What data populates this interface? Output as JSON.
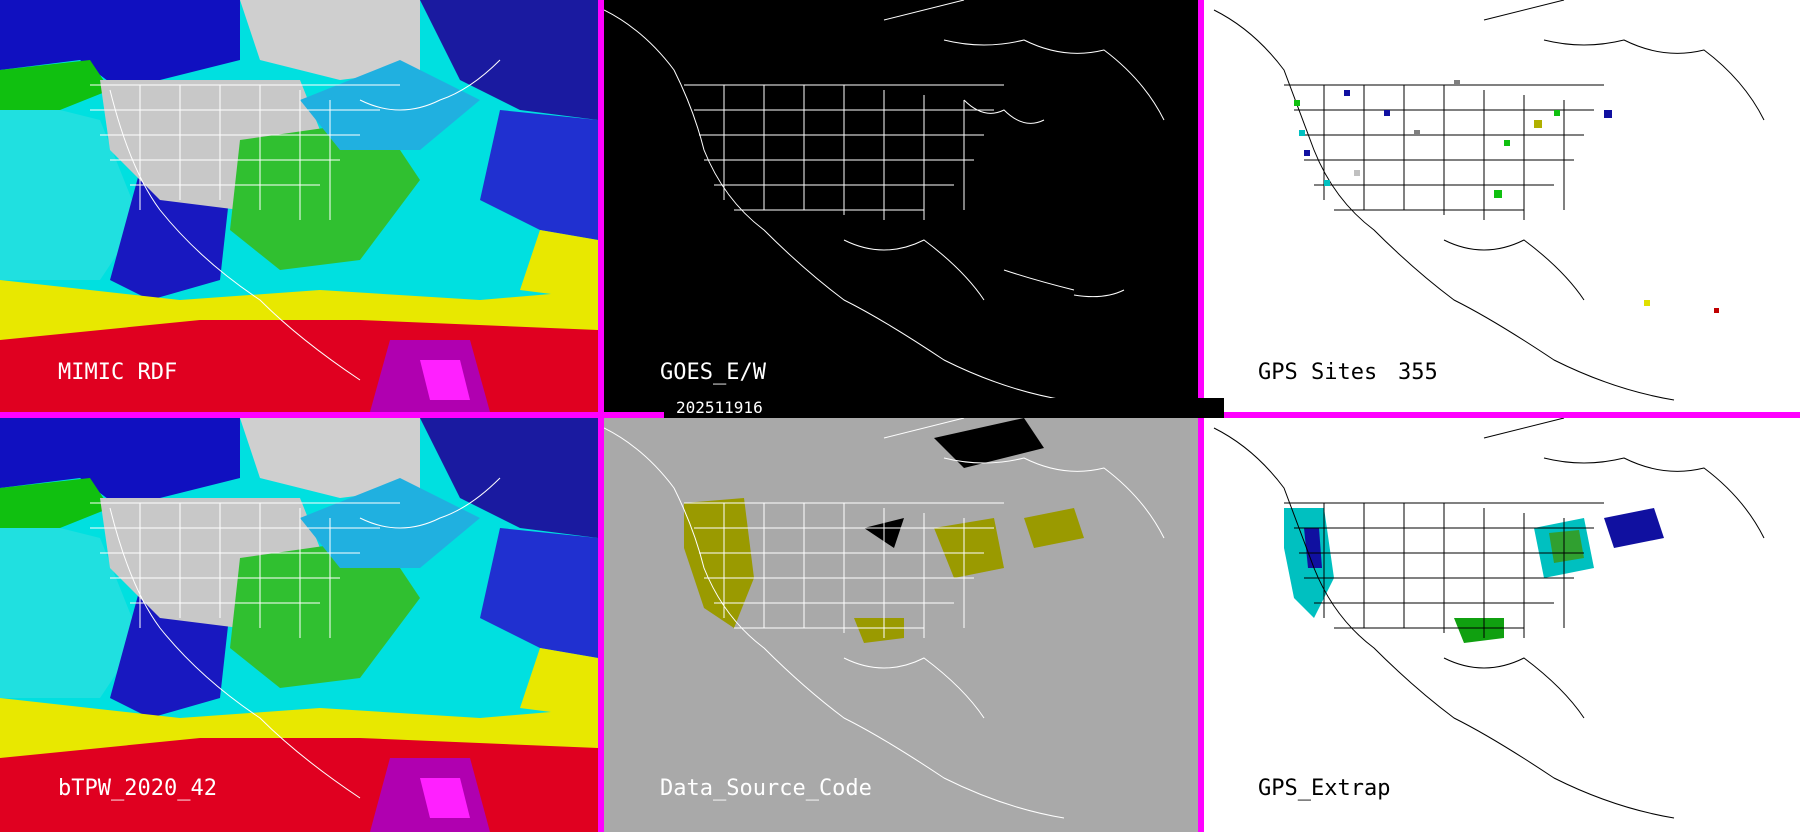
{
  "panels": {
    "mimic": {
      "label": "MIMIC RDF"
    },
    "goes": {
      "label": "GOES_E/W"
    },
    "gps_sites": {
      "label": "GPS Sites",
      "count": "355"
    },
    "btpw": {
      "label": "bTPW_2020_42"
    },
    "data_source": {
      "label": "Data_Source_Code"
    },
    "gps_extrap": {
      "label": "GPS_Extrap"
    }
  },
  "timestamp": "202511916",
  "colors": {
    "separator": "#ff00ff",
    "land_fill_data_source": "#9a9a00",
    "gray_background": "#a9a9a9"
  }
}
